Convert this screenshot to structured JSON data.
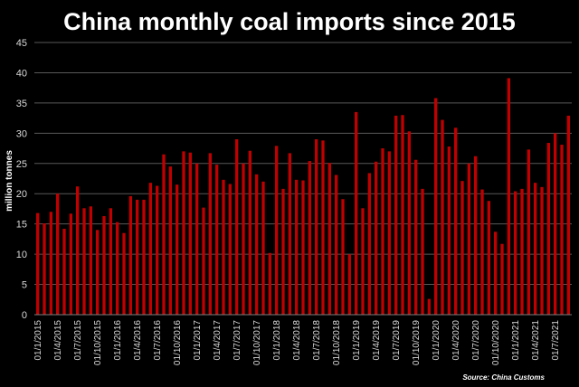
{
  "chart_data": {
    "type": "bar",
    "title": "China monthly coal imports since 2015",
    "ylabel": "million tonnes",
    "xlabel": "",
    "ylim": [
      0,
      45
    ],
    "yticks": [
      0,
      5,
      10,
      15,
      20,
      25,
      30,
      35,
      40,
      45
    ],
    "grid": true,
    "legend": "none",
    "source": "Source: China Customs",
    "bar_color": "#c00000",
    "background": "#000000",
    "grid_color": "#595959",
    "x_tick_labels": [
      "01/1/2015",
      "01/4/2015",
      "01/7/2015",
      "01/10/2015",
      "01/1/2016",
      "01/4/2016",
      "01/7/2016",
      "01/10/2016",
      "01/1/2017",
      "01/4/2017",
      "01/7/2017",
      "01/10/2017",
      "01/1/2018",
      "01/4/2018",
      "01/7/2018",
      "01/10/2018",
      "01/1/2019",
      "01/4/2019",
      "01/7/2019",
      "01/10/2019",
      "01/1/2020",
      "01/4/2020",
      "01/7/2020",
      "01/10/2020",
      "01/1/2021",
      "01/4/2021",
      "01/7/2021"
    ],
    "categories": [
      "01/1/2015",
      "01/2/2015",
      "01/3/2015",
      "01/4/2015",
      "01/5/2015",
      "01/6/2015",
      "01/7/2015",
      "01/8/2015",
      "01/9/2015",
      "01/10/2015",
      "01/11/2015",
      "01/12/2015",
      "01/1/2016",
      "01/2/2016",
      "01/3/2016",
      "01/4/2016",
      "01/5/2016",
      "01/6/2016",
      "01/7/2016",
      "01/8/2016",
      "01/9/2016",
      "01/10/2016",
      "01/11/2016",
      "01/12/2016",
      "01/1/2017",
      "01/2/2017",
      "01/3/2017",
      "01/4/2017",
      "01/5/2017",
      "01/6/2017",
      "01/7/2017",
      "01/8/2017",
      "01/9/2017",
      "01/10/2017",
      "01/11/2017",
      "01/12/2017",
      "01/1/2018",
      "01/2/2018",
      "01/3/2018",
      "01/4/2018",
      "01/5/2018",
      "01/6/2018",
      "01/7/2018",
      "01/8/2018",
      "01/9/2018",
      "01/10/2018",
      "01/11/2018",
      "01/12/2018",
      "01/1/2019",
      "01/2/2019",
      "01/3/2019",
      "01/4/2019",
      "01/5/2019",
      "01/6/2019",
      "01/7/2019",
      "01/8/2019",
      "01/9/2019",
      "01/10/2019",
      "01/11/2019",
      "01/12/2019",
      "01/1/2020",
      "01/2/2020",
      "01/3/2020",
      "01/4/2020",
      "01/5/2020",
      "01/6/2020",
      "01/7/2020",
      "01/8/2020",
      "01/9/2020",
      "01/10/2020",
      "01/11/2020",
      "01/12/2020",
      "01/1/2021",
      "01/2/2021",
      "01/3/2021",
      "01/4/2021",
      "01/5/2021",
      "01/6/2021",
      "01/7/2021",
      "01/8/2021",
      "01/9/2021"
    ],
    "values": [
      16.8,
      15.1,
      17.0,
      20.0,
      14.2,
      16.7,
      21.2,
      17.6,
      17.9,
      14.0,
      16.3,
      17.6,
      15.3,
      13.5,
      19.6,
      19.0,
      19.0,
      21.8,
      21.3,
      26.5,
      24.5,
      21.5,
      27.0,
      26.8,
      25.0,
      17.7,
      26.7,
      24.8,
      22.3,
      21.6,
      29.0,
      25.0,
      27.1,
      23.2,
      22.0,
      10.2,
      27.9,
      20.8,
      26.7,
      22.3,
      22.2,
      25.4,
      29.0,
      28.8,
      25.1,
      23.1,
      19.1,
      10.0,
      33.5,
      17.6,
      23.4,
      25.3,
      27.5,
      27.0,
      32.9,
      33.0,
      30.3,
      25.6,
      20.8,
      2.6,
      35.8,
      32.2,
      27.8,
      30.9,
      22.1,
      25.0,
      26.2,
      20.7,
      18.8,
      13.7,
      11.7,
      39.1,
      20.4,
      20.8,
      27.3,
      21.8,
      21.1,
      28.4,
      30.0,
      28.1,
      32.9
    ]
  }
}
